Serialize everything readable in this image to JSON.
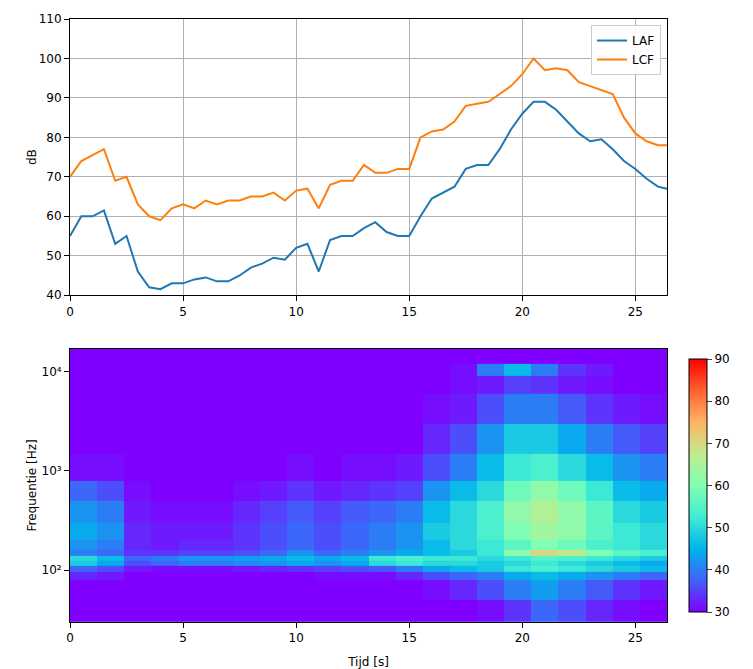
{
  "chart_data": [
    {
      "type": "line",
      "ylabel": "dB",
      "x": [
        0,
        0.5,
        1,
        1.5,
        2,
        2.5,
        3,
        3.5,
        4,
        4.5,
        5,
        5.5,
        6,
        6.5,
        7,
        7.5,
        8,
        8.5,
        9,
        9.5,
        10,
        10.5,
        11,
        11.5,
        12,
        12.5,
        13,
        13.5,
        14,
        14.5,
        15,
        15.5,
        16,
        16.5,
        17,
        17.5,
        18,
        18.5,
        19,
        19.5,
        20,
        20.5,
        21,
        21.5,
        22,
        22.5,
        23,
        23.5,
        24,
        24.5,
        25,
        25.5,
        26,
        26.4
      ],
      "series": [
        {
          "name": "LAF",
          "color": "#1f77b4",
          "values": [
            55,
            60,
            60,
            61.5,
            53,
            55,
            46,
            42,
            41.5,
            43,
            43,
            44,
            44.5,
            43.5,
            43.5,
            45,
            47,
            48,
            49.5,
            49,
            52,
            53,
            46,
            54,
            55,
            55,
            57,
            58.5,
            56,
            55,
            55,
            60,
            64.5,
            66,
            67.5,
            72,
            73,
            73,
            77,
            82,
            86,
            89,
            89,
            87,
            84,
            81,
            79,
            79.5,
            77,
            74,
            72,
            69.5,
            67.5,
            67
          ]
        },
        {
          "name": "LCF",
          "color": "#ff7f0e",
          "values": [
            70,
            74,
            75.5,
            77,
            69,
            70,
            63,
            60,
            59,
            62,
            63,
            62,
            64,
            63,
            64,
            64,
            65,
            65,
            66,
            64,
            66.5,
            67,
            62,
            68,
            69,
            69,
            73,
            71,
            71,
            72,
            72,
            80,
            81.5,
            82,
            84,
            88,
            88.5,
            89,
            91,
            93,
            96,
            100,
            97,
            97.5,
            97,
            94,
            93,
            92,
            91,
            85,
            81,
            79,
            78,
            78
          ]
        }
      ],
      "xlim": [
        0,
        26.4
      ],
      "xticks": [
        0,
        5,
        10,
        15,
        20,
        25
      ],
      "ylim": [
        40,
        110
      ],
      "yticks": [
        40,
        50,
        60,
        70,
        80,
        90,
        100,
        110
      ],
      "grid": true,
      "legend": "upper right"
    },
    {
      "type": "heatmap",
      "xlabel": "Tijd [s]",
      "ylabel": "Frequentie [Hz]",
      "x": [
        0,
        1.2,
        2.4,
        3.6,
        4.8,
        6,
        7.2,
        8.4,
        9.6,
        10.8,
        12,
        13.2,
        14.4,
        15.6,
        16.8,
        18,
        19.2,
        20.4,
        21.6,
        22.8,
        24,
        25.2,
        26.4
      ],
      "y": [
        30,
        50,
        80,
        95,
        110,
        125,
        140,
        160,
        200,
        300,
        500,
        800,
        1500,
        3000,
        6000,
        9000,
        12000,
        17000
      ],
      "z": [
        [
          30,
          30,
          30,
          30,
          30,
          30,
          30,
          30,
          30,
          30,
          30,
          30,
          30,
          30,
          30,
          31,
          34,
          38,
          36,
          33,
          31,
          30
        ],
        [
          30,
          30,
          30,
          30,
          30,
          30,
          30,
          30,
          30,
          30,
          30,
          30,
          30,
          31,
          33,
          36,
          40,
          43,
          40,
          37,
          34,
          32
        ],
        [
          33,
          32,
          30,
          30,
          30,
          30,
          30,
          30,
          30,
          31,
          31,
          31,
          33,
          36,
          38,
          40,
          44,
          46,
          44,
          42,
          40,
          38
        ],
        [
          38,
          36,
          32,
          31,
          31,
          31,
          32,
          33,
          34,
          35,
          36,
          37,
          40,
          44,
          46,
          48,
          52,
          54,
          52,
          50,
          48,
          46
        ],
        [
          48,
          44,
          36,
          38,
          40,
          40,
          41,
          42,
          44,
          42,
          44,
          50,
          52,
          50,
          50,
          48,
          50,
          52,
          50,
          48,
          46,
          44
        ],
        [
          50,
          46,
          38,
          40,
          42,
          42,
          43,
          44,
          46,
          44,
          46,
          52,
          54,
          52,
          52,
          50,
          52,
          55,
          54,
          52,
          50,
          48
        ],
        [
          40,
          38,
          34,
          34,
          35,
          35,
          36,
          38,
          42,
          38,
          40,
          42,
          44,
          46,
          48,
          52,
          62,
          70,
          68,
          60,
          56,
          54
        ],
        [
          42,
          40,
          33,
          32,
          33,
          33,
          34,
          36,
          38,
          36,
          38,
          40,
          42,
          46,
          50,
          52,
          56,
          60,
          58,
          54,
          52,
          50
        ],
        [
          44,
          42,
          33,
          32,
          32,
          32,
          34,
          36,
          38,
          36,
          38,
          40,
          42,
          48,
          50,
          54,
          60,
          64,
          62,
          56,
          52,
          50
        ],
        [
          42,
          40,
          32,
          31,
          31,
          31,
          33,
          35,
          37,
          35,
          37,
          38,
          40,
          46,
          50,
          54,
          62,
          66,
          62,
          56,
          50,
          48
        ],
        [
          38,
          36,
          31,
          30,
          30,
          30,
          31,
          32,
          34,
          32,
          33,
          34,
          35,
          42,
          46,
          50,
          58,
          62,
          58,
          52,
          46,
          44
        ],
        [
          31,
          31,
          30,
          30,
          30,
          30,
          30,
          30,
          31,
          30,
          31,
          31,
          32,
          36,
          40,
          46,
          52,
          54,
          50,
          46,
          42,
          40
        ],
        [
          30,
          30,
          30,
          30,
          30,
          30,
          30,
          30,
          30,
          30,
          30,
          30,
          30,
          33,
          36,
          42,
          48,
          48,
          44,
          40,
          37,
          35
        ],
        [
          30,
          30,
          30,
          30,
          30,
          30,
          30,
          30,
          30,
          30,
          30,
          30,
          30,
          31,
          32,
          36,
          40,
          40,
          37,
          34,
          32,
          31
        ],
        [
          30,
          30,
          30,
          30,
          30,
          30,
          30,
          30,
          30,
          30,
          30,
          30,
          30,
          30,
          31,
          32,
          35,
          34,
          32,
          31,
          30,
          30
        ],
        [
          30,
          30,
          30,
          30,
          30,
          30,
          30,
          30,
          30,
          30,
          30,
          30,
          30,
          30,
          31,
          40,
          46,
          40,
          34,
          32,
          30,
          30
        ],
        [
          30,
          30,
          30,
          30,
          30,
          30,
          30,
          30,
          30,
          30,
          30,
          30,
          30,
          30,
          30,
          30,
          30,
          30,
          30,
          30,
          30,
          30
        ]
      ],
      "xlim": [
        0,
        26.4
      ],
      "xticks": [
        0,
        5,
        10,
        15,
        20,
        25
      ],
      "ylim": [
        30,
        17000
      ],
      "yticks": [
        {
          "value": 100,
          "label": "10²"
        },
        {
          "value": 1000,
          "label": "10³"
        },
        {
          "value": 10000,
          "label": "10⁴"
        }
      ],
      "log": "y",
      "grid": false,
      "zlim": [
        30,
        90
      ],
      "zticks": [
        30,
        40,
        50,
        60,
        70,
        80,
        90
      ]
    }
  ]
}
